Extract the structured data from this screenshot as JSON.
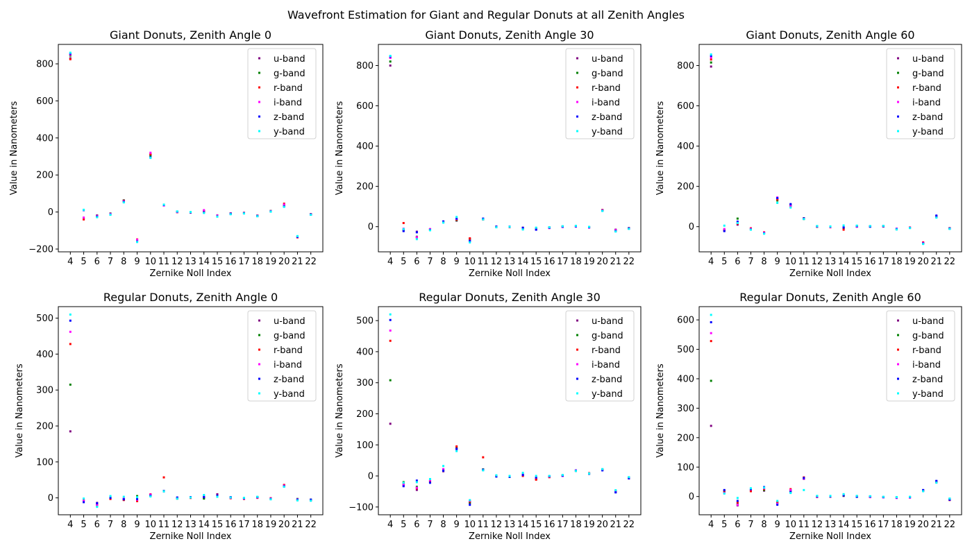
{
  "figure_title": "Wavefront Estimation for Giant and Regular Donuts at all Zenith Angles",
  "bands": [
    "u-band",
    "g-band",
    "r-band",
    "i-band",
    "z-band",
    "y-band"
  ],
  "band_colors": [
    "#800080",
    "#008000",
    "#ff0000",
    "#ff00ff",
    "#0000ff",
    "#00ffff"
  ],
  "chart_data": [
    {
      "type": "scatter",
      "title": "Giant Donuts, Zenith Angle 0",
      "xlabel": "Zernike Noll Index",
      "ylabel": "Value in Nanometers",
      "ylim": [
        -215,
        905
      ],
      "yticks": [
        -200,
        0,
        200,
        400,
        600,
        800
      ],
      "x": [
        4,
        5,
        6,
        7,
        8,
        9,
        10,
        11,
        12,
        13,
        14,
        15,
        16,
        17,
        18,
        19,
        20,
        21,
        22
      ],
      "series": [
        {
          "name": "u-band",
          "values": [
            830,
            -38,
            -20,
            -10,
            63,
            -150,
            310,
            37,
            0,
            -2,
            3,
            -20,
            -8,
            -5,
            -20,
            5,
            33,
            -135,
            -12
          ]
        },
        {
          "name": "g-band",
          "values": [
            845,
            -35,
            -18,
            -8,
            62,
            -155,
            305,
            38,
            1,
            -1,
            5,
            -18,
            -7,
            -4,
            -19,
            6,
            35,
            -133,
            -11
          ]
        },
        {
          "name": "r-band",
          "values": [
            825,
            -40,
            -22,
            -12,
            60,
            -148,
            312,
            36,
            -1,
            -3,
            2,
            -22,
            -9,
            -6,
            -21,
            4,
            45,
            -137,
            -13
          ]
        },
        {
          "name": "i-band",
          "values": [
            850,
            -30,
            -20,
            -10,
            58,
            -150,
            320,
            35,
            0,
            -2,
            10,
            -19,
            -8,
            -5,
            -20,
            5,
            40,
            -135,
            -12
          ]
        },
        {
          "name": "z-band",
          "values": [
            855,
            10,
            -25,
            -14,
            55,
            -160,
            295,
            38,
            2,
            -2,
            -2,
            -24,
            -10,
            -7,
            -22,
            3,
            30,
            -134,
            -14
          ]
        },
        {
          "name": "y-band",
          "values": [
            860,
            12,
            -28,
            -15,
            52,
            -162,
            292,
            40,
            3,
            0,
            -5,
            -25,
            -12,
            -8,
            -23,
            2,
            28,
            -130,
            -15
          ]
        }
      ]
    },
    {
      "type": "scatter",
      "title": "Giant Donuts, Zenith Angle 30",
      "xlabel": "Zernike Noll Index",
      "ylabel": "Value in Nanometers",
      "ylim": [
        -125,
        905
      ],
      "yticks": [
        0,
        200,
        400,
        600,
        800
      ],
      "x": [
        4,
        5,
        6,
        7,
        8,
        9,
        10,
        11,
        12,
        13,
        14,
        15,
        16,
        17,
        18,
        19,
        20,
        21,
        22
      ],
      "series": [
        {
          "name": "u-band",
          "values": [
            800,
            -20,
            -25,
            -15,
            25,
            30,
            -60,
            38,
            0,
            -1,
            -5,
            -10,
            -5,
            0,
            2,
            -3,
            82,
            -15,
            -8
          ]
        },
        {
          "name": "g-band",
          "values": [
            820,
            -15,
            -50,
            -13,
            24,
            32,
            -65,
            37,
            -1,
            -2,
            -8,
            -12,
            -6,
            -1,
            1,
            -4,
            80,
            -18,
            -9
          ]
        },
        {
          "name": "r-band",
          "values": [
            840,
            18,
            -55,
            -14,
            22,
            35,
            -58,
            36,
            -2,
            -3,
            -10,
            -8,
            -4,
            1,
            3,
            -2,
            83,
            -20,
            -7
          ]
        },
        {
          "name": "i-band",
          "values": [
            838,
            -10,
            -52,
            -12,
            23,
            38,
            -70,
            38,
            -1,
            -2,
            -12,
            -14,
            -7,
            -2,
            0,
            -5,
            81,
            -17,
            -10
          ]
        },
        {
          "name": "z-band",
          "values": [
            845,
            -22,
            -28,
            -16,
            26,
            40,
            -72,
            40,
            0,
            0,
            -6,
            -15,
            -5,
            0,
            2,
            -3,
            79,
            -22,
            -8
          ]
        },
        {
          "name": "y-band",
          "values": [
            848,
            -12,
            -62,
            -18,
            20,
            48,
            -78,
            36,
            -3,
            -1,
            -14,
            -5,
            -3,
            2,
            4,
            -1,
            78,
            -24,
            -11
          ]
        }
      ]
    },
    {
      "type": "scatter",
      "title": "Giant Donuts, Zenith Angle 60",
      "xlabel": "Zernike Noll Index",
      "ylabel": "Value in Nanometers",
      "ylim": [
        -125,
        905
      ],
      "yticks": [
        0,
        200,
        400,
        600,
        800
      ],
      "x": [
        4,
        5,
        6,
        7,
        8,
        9,
        10,
        11,
        12,
        13,
        14,
        15,
        16,
        17,
        18,
        19,
        20,
        21,
        22
      ],
      "series": [
        {
          "name": "u-band",
          "values": [
            795,
            -20,
            10,
            -10,
            -30,
            140,
            110,
            40,
            0,
            -2,
            -5,
            0,
            0,
            2,
            -12,
            -5,
            -80,
            50,
            -8
          ]
        },
        {
          "name": "g-band",
          "values": [
            815,
            -15,
            40,
            -12,
            -32,
            130,
            105,
            38,
            -1,
            -1,
            -8,
            1,
            1,
            3,
            -11,
            -6,
            -82,
            48,
            -7
          ]
        },
        {
          "name": "r-band",
          "values": [
            830,
            -18,
            15,
            -8,
            -28,
            135,
            100,
            42,
            1,
            -3,
            -15,
            2,
            2,
            1,
            -13,
            -4,
            -78,
            52,
            -9
          ]
        },
        {
          "name": "i-band",
          "values": [
            840,
            -12,
            20,
            -11,
            -30,
            145,
            102,
            39,
            0,
            -2,
            -2,
            0,
            1,
            2,
            -10,
            -5,
            -81,
            49,
            -8
          ]
        },
        {
          "name": "z-band",
          "values": [
            848,
            -22,
            25,
            -14,
            -33,
            142,
            112,
            41,
            2,
            0,
            -4,
            3,
            0,
            2,
            -12,
            -6,
            -84,
            55,
            -10
          ]
        },
        {
          "name": "y-band",
          "values": [
            855,
            5,
            18,
            -15,
            -35,
            118,
            95,
            38,
            3,
            1,
            6,
            5,
            3,
            4,
            -14,
            -7,
            -86,
            45,
            -11
          ]
        }
      ]
    },
    {
      "type": "scatter",
      "title": "Regular Donuts, Zenith Angle 0",
      "xlabel": "Zernike Noll Index",
      "ylabel": "Value in Nanometers",
      "ylim": [
        -47,
        532
      ],
      "yticks": [
        0,
        100,
        200,
        300,
        400,
        500
      ],
      "x": [
        4,
        5,
        6,
        7,
        8,
        9,
        10,
        11,
        12,
        13,
        14,
        15,
        16,
        17,
        18,
        19,
        20,
        21,
        22
      ],
      "series": [
        {
          "name": "u-band",
          "values": [
            185,
            -10,
            -14,
            -2,
            -3,
            -8,
            8,
            18,
            -1,
            0,
            0,
            10,
            0,
            -2,
            1,
            -2,
            33,
            -5,
            -6
          ]
        },
        {
          "name": "g-band",
          "values": [
            315,
            -7,
            -22,
            1,
            -5,
            5,
            7,
            19,
            -2,
            1,
            -2,
            6,
            1,
            -1,
            2,
            -3,
            35,
            -3,
            -5
          ]
        },
        {
          "name": "r-band",
          "values": [
            428,
            -5,
            -18,
            -3,
            -6,
            -9,
            10,
            57,
            0,
            0,
            3,
            8,
            -1,
            -3,
            0,
            -1,
            36,
            -6,
            -7
          ]
        },
        {
          "name": "i-band",
          "values": [
            462,
            -8,
            -20,
            3,
            -2,
            -5,
            9,
            18,
            -1,
            1,
            5,
            5,
            0,
            -2,
            1,
            -2,
            34,
            -4,
            -6
          ]
        },
        {
          "name": "z-band",
          "values": [
            493,
            -12,
            -15,
            0,
            -4,
            -3,
            6,
            19,
            1,
            2,
            2,
            7,
            2,
            -1,
            2,
            -3,
            32,
            -5,
            -5
          ]
        },
        {
          "name": "y-band",
          "values": [
            510,
            -2,
            -25,
            5,
            3,
            2,
            4,
            18,
            -2,
            1,
            8,
            3,
            1,
            0,
            3,
            -4,
            31,
            -7,
            -8
          ]
        }
      ]
    },
    {
      "type": "scatter",
      "title": "Regular Donuts, Zenith Angle 30",
      "xlabel": "Zernike Noll Index",
      "ylabel": "Value in Nanometers",
      "ylim": [
        -125,
        545
      ],
      "yticks": [
        -100,
        0,
        100,
        200,
        300,
        400,
        500
      ],
      "x": [
        4,
        5,
        6,
        7,
        8,
        9,
        10,
        11,
        12,
        13,
        14,
        15,
        16,
        17,
        18,
        19,
        20,
        21,
        22
      ],
      "series": [
        {
          "name": "u-band",
          "values": [
            168,
            -30,
            -45,
            -18,
            15,
            90,
            -88,
            20,
            0,
            -2,
            2,
            -8,
            -2,
            0,
            18,
            8,
            20,
            -50,
            -6
          ]
        },
        {
          "name": "g-band",
          "values": [
            308,
            -20,
            -35,
            -20,
            18,
            88,
            -85,
            21,
            -1,
            -3,
            5,
            -10,
            -3,
            1,
            17,
            7,
            21,
            -52,
            -5
          ]
        },
        {
          "name": "r-band",
          "values": [
            435,
            -25,
            -40,
            -15,
            20,
            95,
            -82,
            60,
            1,
            -1,
            0,
            -12,
            -4,
            2,
            16,
            9,
            19,
            -48,
            -7
          ]
        },
        {
          "name": "i-band",
          "values": [
            468,
            -28,
            -38,
            -14,
            22,
            85,
            -80,
            19,
            0,
            -2,
            4,
            -6,
            -2,
            0,
            18,
            8,
            20,
            -51,
            -6
          ]
        },
        {
          "name": "z-band",
          "values": [
            502,
            -33,
            -15,
            -22,
            17,
            87,
            -93,
            20,
            -2,
            -3,
            3,
            -5,
            -1,
            1,
            17,
            7,
            18,
            -53,
            -8
          ]
        },
        {
          "name": "y-band",
          "values": [
            520,
            -22,
            -20,
            -10,
            32,
            80,
            -78,
            18,
            2,
            0,
            10,
            0,
            0,
            3,
            16,
            8,
            22,
            -46,
            -4
          ]
        }
      ]
    },
    {
      "type": "scatter",
      "title": "Regular Donuts, Zenith Angle 60",
      "xlabel": "Zernike Noll Index",
      "ylabel": "Value in Nanometers",
      "ylim": [
        -62,
        645
      ],
      "yticks": [
        0,
        100,
        200,
        300,
        400,
        500,
        600
      ],
      "x": [
        4,
        5,
        6,
        7,
        8,
        9,
        10,
        11,
        12,
        13,
        14,
        15,
        16,
        17,
        18,
        19,
        20,
        21,
        22
      ],
      "series": [
        {
          "name": "u-band",
          "values": [
            240,
            18,
            -30,
            20,
            20,
            -20,
            20,
            60,
            -2,
            -1,
            2,
            -1,
            -2,
            -3,
            -4,
            -3,
            20,
            50,
            -10
          ]
        },
        {
          "name": "g-band",
          "values": [
            393,
            15,
            -25,
            22,
            22,
            -22,
            18,
            62,
            -1,
            0,
            3,
            0,
            -1,
            -2,
            -3,
            -2,
            21,
            52,
            -8
          ]
        },
        {
          "name": "r-band",
          "values": [
            528,
            20,
            -20,
            18,
            25,
            -18,
            25,
            65,
            0,
            1,
            5,
            1,
            -1,
            -2,
            -4,
            -3,
            19,
            48,
            -12
          ]
        },
        {
          "name": "i-band",
          "values": [
            555,
            12,
            -28,
            24,
            28,
            -25,
            22,
            61,
            -1,
            0,
            6,
            0,
            -2,
            -3,
            -5,
            -4,
            20,
            51,
            -9
          ]
        },
        {
          "name": "z-band",
          "values": [
            592,
            22,
            -15,
            25,
            32,
            -28,
            15,
            63,
            1,
            1,
            4,
            -1,
            0,
            -2,
            -3,
            -2,
            22,
            53,
            -11
          ]
        },
        {
          "name": "y-band",
          "values": [
            617,
            10,
            -5,
            28,
            30,
            -15,
            12,
            22,
            2,
            2,
            8,
            2,
            1,
            -1,
            -2,
            -1,
            18,
            47,
            -7
          ]
        }
      ]
    }
  ]
}
